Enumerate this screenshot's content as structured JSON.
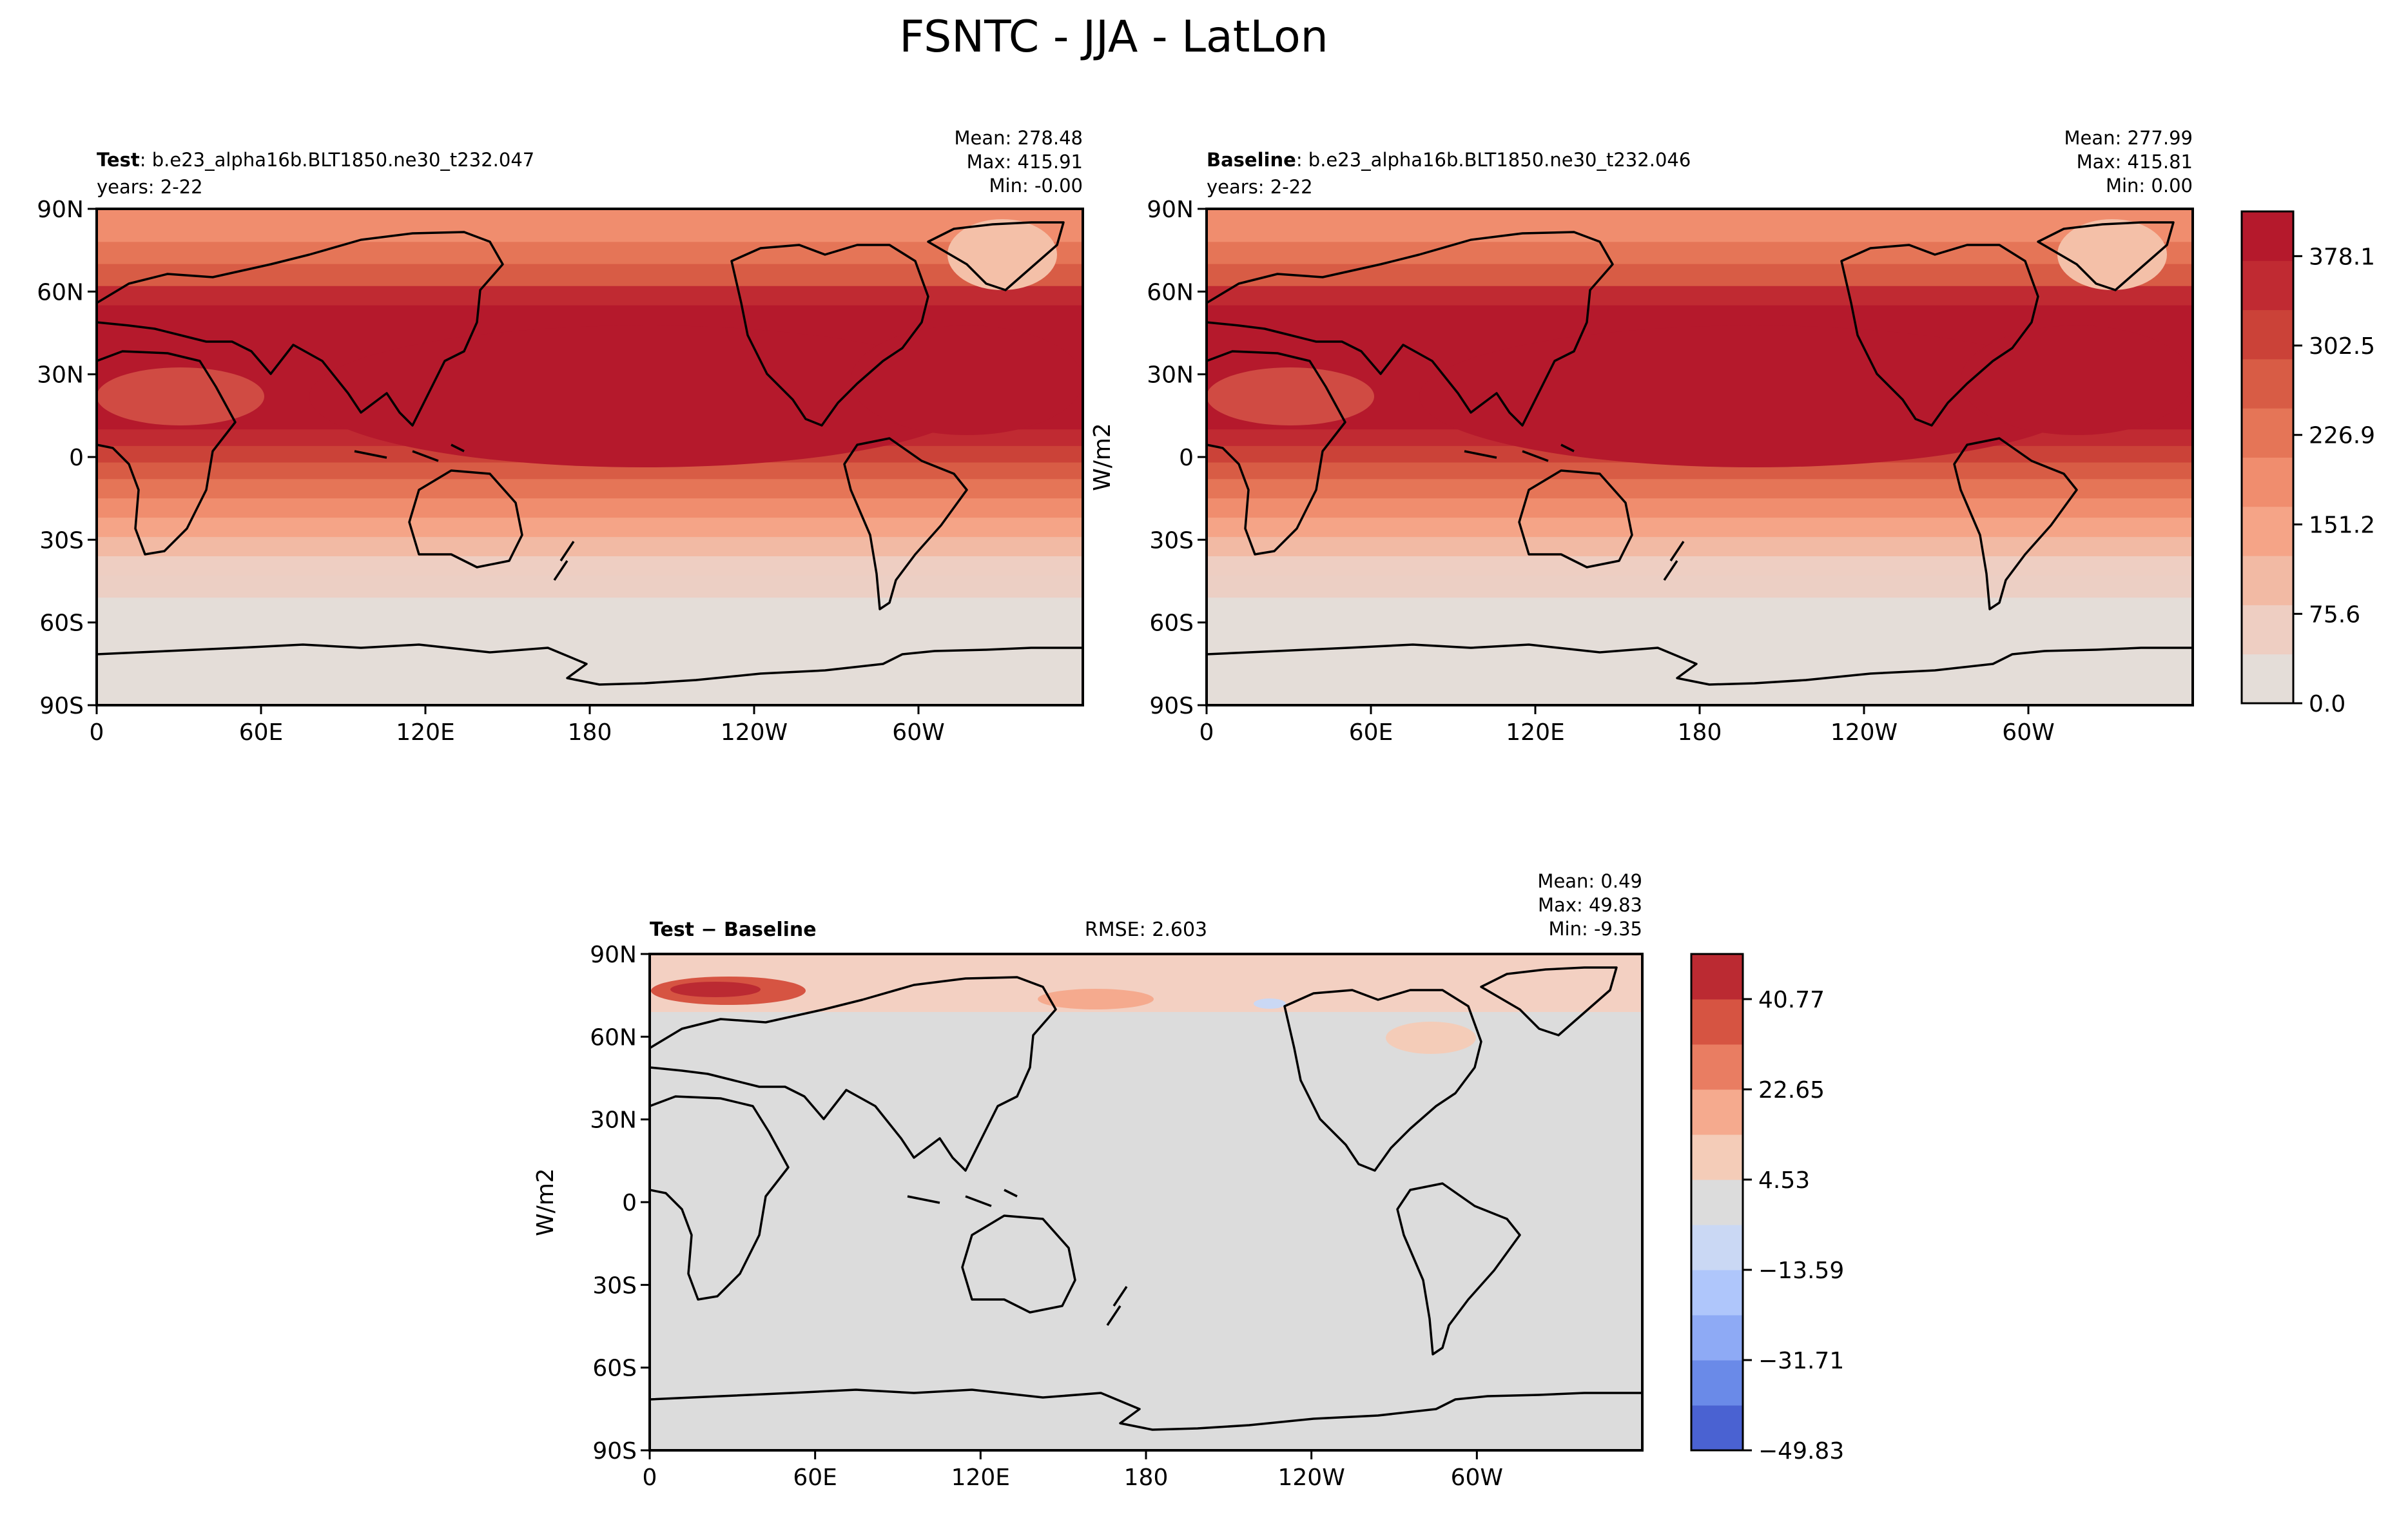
{
  "figure": {
    "title": "FSNTC - JJA - LatLon"
  },
  "chart_data": [
    {
      "type": "heatmap",
      "panel": "test",
      "name_bold": "Test",
      "name_rest": ": b.e23_alpha16b.BLT1850.ne30_t232.047",
      "years": "years: 2-22",
      "stats": [
        "Mean: 278.48",
        "Max: 415.91",
        "Min: -0.00"
      ],
      "xticks": [
        "0",
        "60E",
        "120E",
        "180",
        "120W",
        "60W"
      ],
      "yticks": [
        "90N",
        "60N",
        "30N",
        "0",
        "30S",
        "60S",
        "90S"
      ],
      "xlim": [
        0,
        360
      ],
      "ylim": [
        -90,
        90
      ]
    },
    {
      "type": "heatmap",
      "panel": "baseline",
      "name_bold": "Baseline",
      "name_rest": ": b.e23_alpha16b.BLT1850.ne30_t232.046",
      "years": "years: 2-22",
      "stats": [
        "Mean: 277.99",
        "Max: 415.81",
        "Min:  0.00"
      ],
      "xticks": [
        "0",
        "60E",
        "120E",
        "180",
        "120W",
        "60W"
      ],
      "yticks": [
        "90N",
        "60N",
        "30N",
        "0",
        "30S",
        "60S",
        "90S"
      ],
      "xlim": [
        0,
        360
      ],
      "ylim": [
        -90,
        90
      ],
      "ylabel": "W/m2"
    },
    {
      "type": "heatmap",
      "panel": "diff",
      "name_bold": "Test − Baseline",
      "rmse": "RMSE: 2.603",
      "stats": [
        "Mean:  0.49",
        "Max: 49.83",
        "Min: -9.35"
      ],
      "xticks": [
        "0",
        "60E",
        "120E",
        "180",
        "120W",
        "60W"
      ],
      "yticks": [
        "90N",
        "60N",
        "30N",
        "0",
        "30S",
        "60S",
        "90S"
      ],
      "xlim": [
        0,
        360
      ],
      "ylim": [
        -90,
        90
      ],
      "ylabel": "W/m2"
    }
  ],
  "colorbars": {
    "main": {
      "ticks": [
        "0.0",
        "75.6",
        "151.2",
        "226.9",
        "302.5",
        "378.1"
      ],
      "range": [
        0,
        415.9
      ],
      "colors": [
        "#e4ddd8",
        "#eecec2",
        "#f2baa4",
        "#f5a487",
        "#f08d6e",
        "#e57557",
        "#d85c45",
        "#cb4238",
        "#c02a32",
        "#b5192c"
      ]
    },
    "diff": {
      "ticks": [
        "−49.83",
        "−31.71",
        "−13.59",
        "4.53",
        "22.65",
        "40.77"
      ],
      "range": [
        -49.83,
        49.83
      ],
      "colors": [
        "#4a62d2",
        "#6a8ae8",
        "#8eaaf5",
        "#afc6fb",
        "#cad8f4",
        "#dcdcdc",
        "#f4ccb8",
        "#f5aa8e",
        "#e97d62",
        "#d65442",
        "#bb2a32"
      ]
    }
  }
}
